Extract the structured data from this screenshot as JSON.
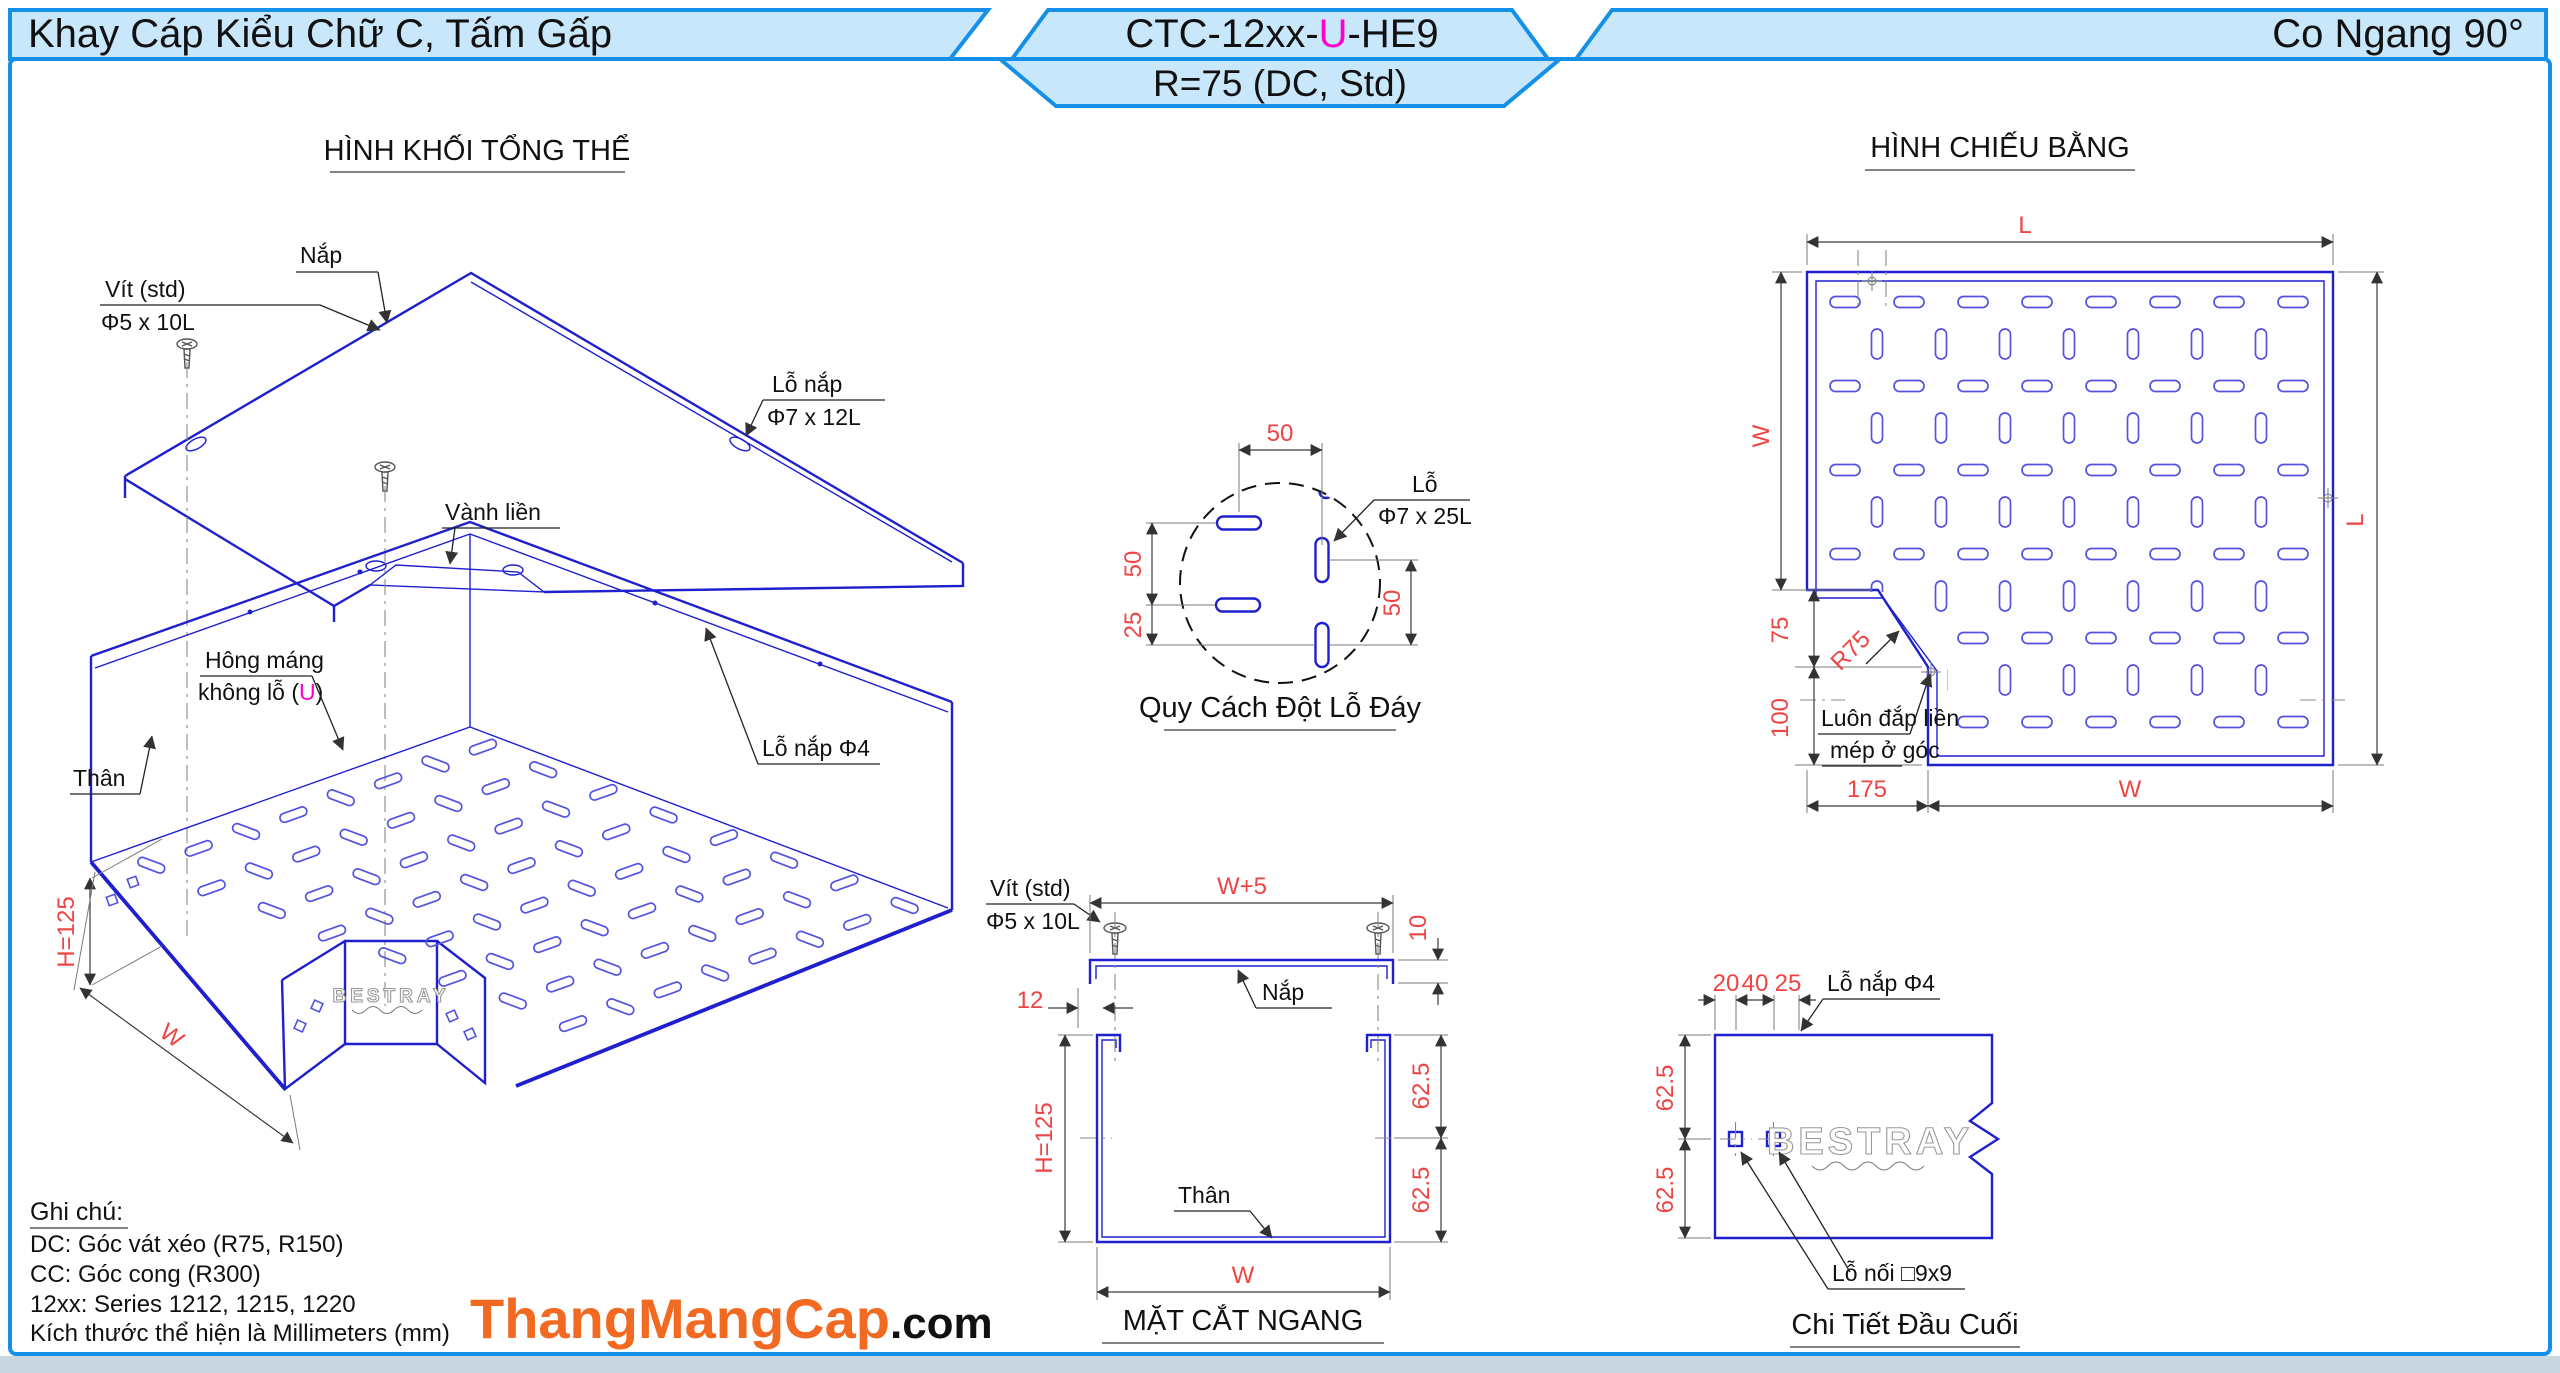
{
  "colors": {
    "accent": "#1490e8",
    "banner_fill": "#c9e7fb",
    "draw_blue": "#1f1fd0",
    "slot_blue": "#5353e0",
    "dim_red": "#ef4444",
    "magenta": "#ff00cc",
    "logo_orange": "#f26a21"
  },
  "header": {
    "left_title": "Khay Cáp Kiểu Chữ C, Tấm Gấp",
    "code_prefix": "CTC-12xx-",
    "code_highlight": "U",
    "code_suffix": "-HE9",
    "code_note": "R=75 (DC, Std)",
    "right_title": "Co Ngang 90°"
  },
  "iso": {
    "title": "HÌNH KHỐI TỔNG THỂ",
    "watermark": "BESTRAY",
    "labels": {
      "nap": "Nắp",
      "vit1": "Vít (std)",
      "vit2": "Φ5 x 10L",
      "lo_nap1": "Lỗ nắp",
      "lo_nap2": "Φ7 x 12L",
      "vanh_lien": "Vành liền",
      "hong1": "Hông máng",
      "hong2a": "không lỗ (",
      "hong2b": "U",
      "hong2c": ")",
      "than": "Thân",
      "lo_nap4": "Lỗ nắp Φ4"
    },
    "dims": {
      "h": "H=125",
      "w": "W"
    }
  },
  "hole_detail": {
    "title": "Quy Cách Đột Lỗ Đáy",
    "label1": "Lỗ",
    "label2": "Φ7 x 25L",
    "dim_top": "50",
    "dim_left_upper": "50",
    "dim_left_lower": "25",
    "dim_right": "50"
  },
  "plan": {
    "title": "HÌNH CHIẾU BẰNG",
    "note1": "Luôn đắp liền",
    "note2": "mép ở góc",
    "dims": {
      "l_top": "L",
      "w_left": "W",
      "l_right": "L",
      "v75": "75",
      "v100": "100",
      "r75": "R75",
      "b175": "175",
      "bw": "W"
    }
  },
  "section": {
    "title": "MẶT CẮT NGANG",
    "labels": {
      "vit1": "Vít (std)",
      "vit2": "Φ5 x 10L",
      "nap": "Nắp",
      "than": "Thân"
    },
    "dims": {
      "wp5": "W+5",
      "d10": "10",
      "d12": "12",
      "h": "H=125",
      "s1": "62.5",
      "s2": "62.5",
      "w": "W"
    }
  },
  "end_detail": {
    "title": "Chi Tiết Đầu Cuối",
    "watermark": "BESTRAY",
    "label_top": "Lỗ nắp Φ4",
    "label_bottom": "Lỗ nối □9x9",
    "dims": {
      "d20": "20",
      "d40": "40",
      "d25": "25",
      "s1": "62.5",
      "s2": "62.5"
    }
  },
  "notes": {
    "title": "Ghi chú:",
    "line1": "DC: Góc vát xéo (R75, R150)",
    "line2": "CC: Góc cong (R300)",
    "line3": "12xx: Series 1212, 1215, 1220",
    "line4": "Kích thước thể hiện là Millimeters (mm)"
  },
  "logo": {
    "main": "ThangMangCap",
    "suffix": ".com"
  }
}
